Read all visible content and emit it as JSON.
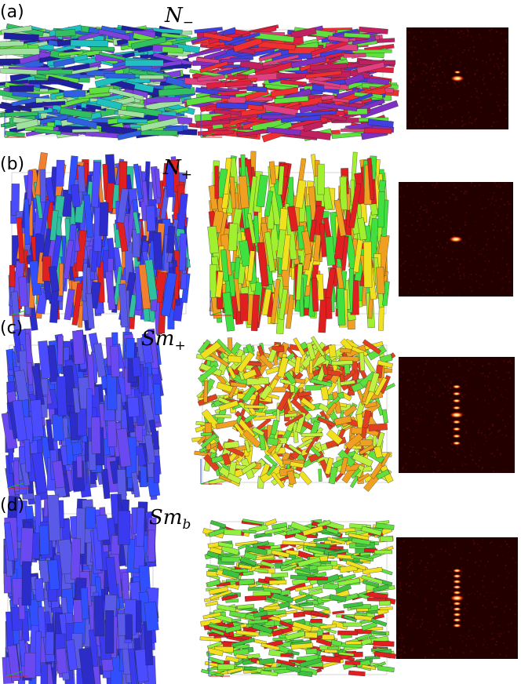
{
  "panels": [
    {
      "label": "(a)",
      "phase": {
        "symbol": "N",
        "subscript": "−"
      }
    },
    {
      "label": "(b)",
      "phase": {
        "symbol": "N",
        "subscript": "+"
      }
    },
    {
      "label": "(c)",
      "phase": {
        "symbol": "Sm",
        "subscript": "+"
      }
    },
    {
      "label": "(d)",
      "phase": {
        "symbol": "Sm",
        "subscript": "b"
      }
    }
  ]
}
